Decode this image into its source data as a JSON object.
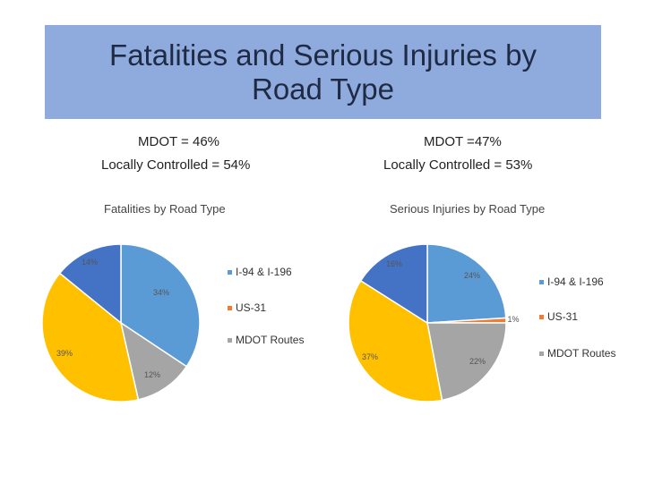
{
  "slide": {
    "title_line1": "Fatalities and Serious Injuries by",
    "title_line2": "Road Type",
    "left_mdot": "MDOT = 46%",
    "left_local": "Locally Controlled = 54%",
    "right_mdot": "MDOT =47%",
    "right_local": "Locally Controlled = 53%"
  },
  "colors": {
    "title_bg": "#8faadc",
    "I-94 & I-196": "#5b9bd5",
    "US-31": "#ed7d31",
    "MDOT Routes": "#a5a5a5",
    "dark_blue": "#4472c4",
    "yellow": "#ffc000"
  },
  "chart_data": [
    {
      "type": "pie",
      "title": "Fatalities by Road Type",
      "slices": [
        {
          "label": "I-94 & I-196",
          "value": 34,
          "color": "#5b9bd5",
          "text": "34%"
        },
        {
          "label": "MDOT Routes",
          "value": 12,
          "color": "#a5a5a5",
          "text": "12%"
        },
        {
          "label": "",
          "value": 39,
          "color": "#ffc000",
          "text": "39%"
        },
        {
          "label": "",
          "value": 14,
          "color": "#4472c4",
          "text": "14%"
        }
      ],
      "legend": [
        "I-94 & I-196",
        "US-31",
        "MDOT Routes"
      ],
      "legend_colors": [
        "#5b9bd5",
        "#ed7d31",
        "#a5a5a5"
      ]
    },
    {
      "type": "pie",
      "title": "Serious Injuries by Road Type",
      "slices": [
        {
          "label": "I-94 & I-196",
          "value": 24,
          "color": "#5b9bd5",
          "text": "24%"
        },
        {
          "label": "US-31",
          "value": 1,
          "color": "#ed7d31",
          "text": "1%"
        },
        {
          "label": "MDOT Routes",
          "value": 22,
          "color": "#a5a5a5",
          "text": "22%"
        },
        {
          "label": "",
          "value": 37,
          "color": "#ffc000",
          "text": "37%"
        },
        {
          "label": "",
          "value": 16,
          "color": "#4472c4",
          "text": "16%"
        }
      ],
      "legend": [
        "I-94 & I-196",
        "US-31",
        "MDOT Routes"
      ],
      "legend_colors": [
        "#5b9bd5",
        "#ed7d31",
        "#a5a5a5"
      ]
    }
  ]
}
